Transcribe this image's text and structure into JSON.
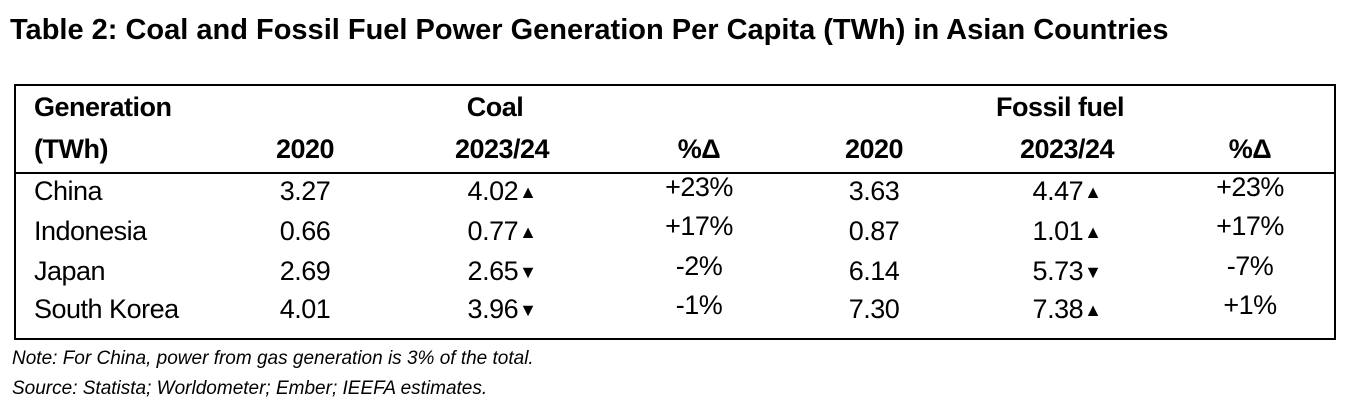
{
  "title": "Table 2: Coal and Fossil Fuel Power Generation Per Capita (TWh) in Asian Countries",
  "table": {
    "row_header_line1": "Generation",
    "row_header_line2": "(TWh)",
    "group_coal": "Coal",
    "group_fossil": "Fossil fuel",
    "columns": [
      "2020",
      "2023/24",
      "%Δ",
      "2020",
      "2023/24",
      "%Δ"
    ],
    "rows": [
      {
        "country": "China",
        "coal_2020": "3.27",
        "coal_2324": "4.02",
        "coal_dir": "▲",
        "coal_pct": "+23%",
        "fossil_2020": "3.63",
        "fossil_2324": "4.47",
        "fossil_dir": "▲",
        "fossil_pct": "+23%"
      },
      {
        "country": "Indonesia",
        "coal_2020": "0.66",
        "coal_2324": "0.77",
        "coal_dir": "▲",
        "coal_pct": "+17%",
        "fossil_2020": "0.87",
        "fossil_2324": "1.01",
        "fossil_dir": "▲",
        "fossil_pct": "+17%"
      },
      {
        "country": "Japan",
        "coal_2020": "2.69",
        "coal_2324": "2.65",
        "coal_dir": "▼",
        "coal_pct": "-2%",
        "fossil_2020": "6.14",
        "fossil_2324": "5.73",
        "fossil_dir": "▼",
        "fossil_pct": "-7%"
      },
      {
        "country": "South Korea",
        "coal_2020": "4.01",
        "coal_2324": "3.96",
        "coal_dir": "▼",
        "coal_pct": "-1%",
        "fossil_2020": "7.30",
        "fossil_2324": "7.38",
        "fossil_dir": "▲",
        "fossil_pct": "+1%"
      }
    ]
  },
  "note": "Note: For China, power from gas generation is 3% of the total.",
  "source": "Source: Statista; Worldometer; Ember; IEEFA estimates."
}
